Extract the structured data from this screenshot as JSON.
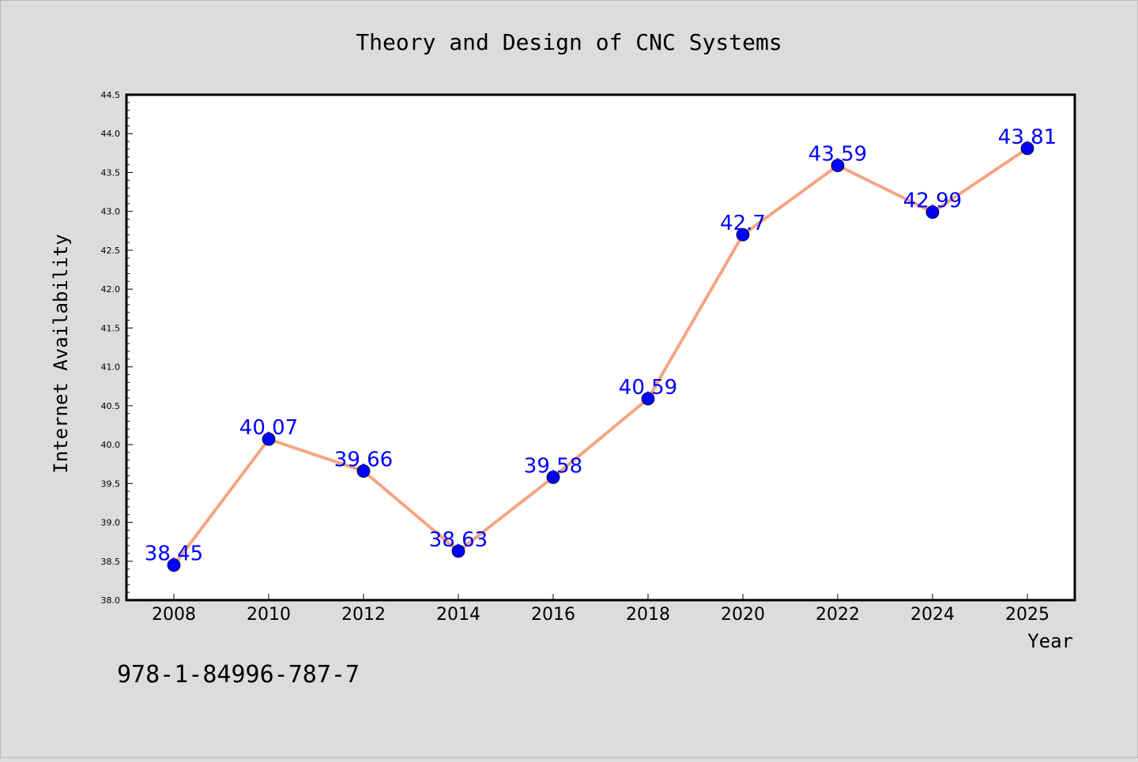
{
  "chart_data": {
    "type": "line",
    "title": "Theory and Design of CNC Systems",
    "xlabel": "Year",
    "ylabel": "Internet Availability",
    "categories": [
      "2008",
      "2010",
      "2012",
      "2014",
      "2016",
      "2018",
      "2020",
      "2022",
      "2024",
      "2025"
    ],
    "series": [
      {
        "values": [
          38.45,
          40.07,
          39.66,
          38.63,
          39.58,
          40.59,
          42.7,
          43.59,
          42.99,
          43.81
        ],
        "labels": [
          "38.45",
          "40.07",
          "39.66",
          "38.63",
          "39.58",
          "40.59",
          "42.7",
          "43.59",
          "42.99",
          "43.81"
        ]
      }
    ],
    "ylim": [
      38.0,
      44.5
    ],
    "yticks": [
      "38.0",
      "38.5",
      "39.0",
      "39.5",
      "40.0",
      "40.5",
      "41.0",
      "41.5",
      "42.0",
      "42.5",
      "43.0",
      "43.5",
      "44.0",
      "44.5"
    ],
    "grid": false,
    "footnote": "978-1-84996-787-7",
    "colors": {
      "background": "#dcdcdc",
      "plot_background": "#ffffff",
      "line": "#f4a582",
      "marker": "#0000ff",
      "data_label": "#0000ff",
      "text": "#000000"
    }
  }
}
